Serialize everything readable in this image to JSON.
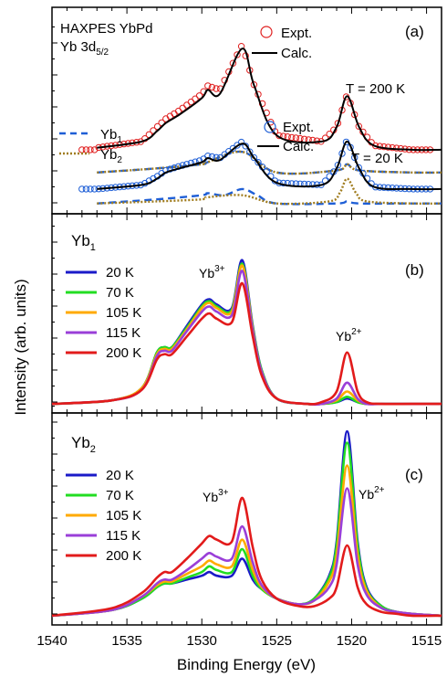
{
  "figure": {
    "ylabel": "Intensity (arb. units)",
    "xlabel": "Binding Energy (eV)",
    "xticks": [
      "1540",
      "1535",
      "1530",
      "1525",
      "1520",
      "1515"
    ]
  },
  "chart_data": [
    {
      "type": "line",
      "panel": "(a)",
      "title_lines": [
        "HAXPES YbPd",
        "Yb 3d",
        "5/2"
      ],
      "annotations": [
        "T = 200 K",
        "T = 20 K"
      ],
      "legend_top": [
        "Expt.",
        "Calc."
      ],
      "legend_bottom": [
        "Expt.",
        "Calc."
      ],
      "legend_components": [
        {
          "base": "Yb",
          "sub": "1"
        },
        {
          "base": "Yb",
          "sub": "2"
        }
      ],
      "xlim": [
        1540,
        1514
      ],
      "series": [
        {
          "name": "Expt. (200 K)",
          "style": "circles",
          "color": "#e02020",
          "x": [
            1537,
            1534,
            1533,
            1532.4,
            1531.5,
            1530,
            1529.6,
            1528.8,
            1527.3,
            1526.5,
            1525,
            1522,
            1521,
            1520.3,
            1519.5,
            1518.5,
            1516,
            1514
          ],
          "y": [
            0.32,
            0.35,
            0.42,
            0.46,
            0.5,
            0.58,
            0.62,
            0.6,
            0.82,
            0.62,
            0.38,
            0.35,
            0.42,
            0.58,
            0.42,
            0.33,
            0.31,
            0.31
          ]
        },
        {
          "name": "Calc. (200 K)",
          "style": "line",
          "color": "#000000",
          "x": [
            1537,
            1534,
            1533,
            1532.4,
            1531.5,
            1530,
            1529.6,
            1528.8,
            1527.3,
            1526.5,
            1525,
            1522,
            1521,
            1520.3,
            1519.5,
            1518.5,
            1516,
            1514
          ],
          "y": [
            0.32,
            0.35,
            0.4,
            0.44,
            0.48,
            0.56,
            0.6,
            0.58,
            0.8,
            0.62,
            0.38,
            0.35,
            0.42,
            0.57,
            0.42,
            0.33,
            0.31,
            0.31
          ]
        },
        {
          "name": "Yb1 (200 K)",
          "style": "dashed",
          "color": "#1f5fd6",
          "x": [
            1537,
            1533,
            1530,
            1529.6,
            1527.3,
            1525,
            1521,
            1520.3,
            1519.5,
            1516,
            1514
          ],
          "y": [
            0.2,
            0.22,
            0.24,
            0.25,
            0.3,
            0.2,
            0.21,
            0.24,
            0.21,
            0.2,
            0.2
          ]
        },
        {
          "name": "Yb2 (200 K)",
          "style": "dotted",
          "color": "#a07c1e",
          "x": [
            1537,
            1533,
            1530,
            1529.6,
            1527.3,
            1525,
            1521,
            1520.3,
            1519.5,
            1516,
            1514
          ],
          "y": [
            0.2,
            0.22,
            0.24,
            0.25,
            0.3,
            0.2,
            0.21,
            0.24,
            0.21,
            0.2,
            0.2
          ]
        },
        {
          "name": "Expt. (20 K)",
          "style": "circles",
          "color": "#1f5fd6",
          "x": [
            1537,
            1534,
            1533,
            1532.4,
            1531.5,
            1530,
            1529.6,
            1528.8,
            1527.3,
            1526.5,
            1525,
            1522,
            1521,
            1520.3,
            1519.5,
            1518.5,
            1516,
            1514
          ],
          "y": [
            0.12,
            0.14,
            0.18,
            0.21,
            0.23,
            0.26,
            0.28,
            0.27,
            0.35,
            0.27,
            0.15,
            0.14,
            0.22,
            0.36,
            0.22,
            0.13,
            0.12,
            0.12
          ]
        },
        {
          "name": "Calc. (20 K)",
          "style": "line",
          "color": "#000000",
          "x": [
            1537,
            1534,
            1533,
            1532.4,
            1531.5,
            1530,
            1529.6,
            1528.8,
            1527.3,
            1526.5,
            1525,
            1522,
            1521,
            1520.3,
            1519.5,
            1518.5,
            1516,
            1514
          ],
          "y": [
            0.12,
            0.14,
            0.17,
            0.2,
            0.22,
            0.25,
            0.27,
            0.26,
            0.34,
            0.27,
            0.15,
            0.14,
            0.22,
            0.35,
            0.22,
            0.13,
            0.12,
            0.12
          ]
        },
        {
          "name": "Yb1 (20 K)",
          "style": "dashed",
          "color": "#1f5fd6",
          "x": [
            1537,
            1533,
            1530,
            1529.6,
            1528.5,
            1527.3,
            1526.3,
            1525,
            1521,
            1520.3,
            1519.5,
            1516,
            1514
          ],
          "y": [
            0.05,
            0.07,
            0.09,
            0.1,
            0.09,
            0.12,
            0.09,
            0.05,
            0.05,
            0.06,
            0.05,
            0.05,
            0.05
          ]
        },
        {
          "name": "Yb2 (20 K)",
          "style": "dotted",
          "color": "#a07c1e",
          "x": [
            1537,
            1533,
            1530,
            1529.6,
            1527.3,
            1525,
            1521.5,
            1520.8,
            1520.3,
            1519.7,
            1519,
            1516,
            1514
          ],
          "y": [
            0.05,
            0.06,
            0.07,
            0.08,
            0.09,
            0.05,
            0.06,
            0.1,
            0.17,
            0.1,
            0.06,
            0.05,
            0.05
          ]
        }
      ]
    },
    {
      "type": "line",
      "panel": "(b)",
      "component": {
        "base": "Yb",
        "sub": "1"
      },
      "peak_labels": [
        {
          "base": "Yb",
          "sup": "3+"
        },
        {
          "base": "Yb",
          "sup": "2+"
        }
      ],
      "xlim": [
        1540,
        1514
      ],
      "ylim": [
        0,
        1
      ],
      "x": [
        1540,
        1536,
        1534,
        1533,
        1532.5,
        1532,
        1531,
        1530,
        1529.5,
        1529,
        1528,
        1527.3,
        1526.6,
        1526,
        1525,
        1523,
        1522,
        1521,
        1520.3,
        1519.6,
        1519,
        1518,
        1516,
        1514
      ],
      "series": [
        {
          "name": "20 K",
          "color": "#1a1ac8",
          "values": [
            0.01,
            0.03,
            0.1,
            0.3,
            0.33,
            0.33,
            0.45,
            0.57,
            0.6,
            0.57,
            0.55,
            0.82,
            0.45,
            0.2,
            0.04,
            0.01,
            0.01,
            0.02,
            0.04,
            0.02,
            0.01,
            0.01,
            0.01,
            0.01
          ]
        },
        {
          "name": "70 K",
          "color": "#22dd22",
          "values": [
            0.01,
            0.03,
            0.1,
            0.3,
            0.33,
            0.33,
            0.44,
            0.56,
            0.59,
            0.56,
            0.54,
            0.8,
            0.44,
            0.2,
            0.04,
            0.01,
            0.01,
            0.02,
            0.05,
            0.02,
            0.01,
            0.01,
            0.01,
            0.01
          ]
        },
        {
          "name": "105 K",
          "color": "#ffaa00",
          "values": [
            0.01,
            0.03,
            0.1,
            0.29,
            0.32,
            0.32,
            0.43,
            0.55,
            0.58,
            0.55,
            0.53,
            0.79,
            0.43,
            0.19,
            0.04,
            0.01,
            0.01,
            0.03,
            0.08,
            0.03,
            0.01,
            0.01,
            0.01,
            0.01
          ]
        },
        {
          "name": "115 K",
          "color": "#9a3fd8",
          "values": [
            0.01,
            0.03,
            0.09,
            0.28,
            0.31,
            0.31,
            0.42,
            0.53,
            0.56,
            0.53,
            0.51,
            0.76,
            0.42,
            0.19,
            0.04,
            0.01,
            0.01,
            0.04,
            0.13,
            0.04,
            0.01,
            0.01,
            0.01,
            0.01
          ]
        },
        {
          "name": "200 K",
          "color": "#e21b1b",
          "values": [
            0.01,
            0.03,
            0.09,
            0.26,
            0.29,
            0.29,
            0.39,
            0.49,
            0.52,
            0.49,
            0.47,
            0.69,
            0.39,
            0.17,
            0.04,
            0.01,
            0.02,
            0.08,
            0.3,
            0.08,
            0.02,
            0.01,
            0.01,
            0.01
          ]
        }
      ]
    },
    {
      "type": "line",
      "panel": "(c)",
      "component": {
        "base": "Yb",
        "sub": "2"
      },
      "peak_labels": [
        {
          "base": "Yb",
          "sup": "3+"
        },
        {
          "base": "Yb",
          "sup": "2+"
        }
      ],
      "xlim": [
        1540,
        1514
      ],
      "ylim": [
        0,
        1
      ],
      "x": [
        1540,
        1536,
        1534,
        1533,
        1532.5,
        1532,
        1531,
        1530,
        1529.5,
        1529,
        1528,
        1527.3,
        1526.6,
        1526,
        1525,
        1523.5,
        1522.5,
        1521.5,
        1521,
        1520.3,
        1519.6,
        1519,
        1518,
        1517,
        1516,
        1514
      ],
      "series": [
        {
          "name": "20 K",
          "color": "#1a1ac8",
          "values": [
            0.01,
            0.04,
            0.1,
            0.16,
            0.18,
            0.18,
            0.2,
            0.22,
            0.24,
            0.22,
            0.22,
            0.31,
            0.2,
            0.15,
            0.1,
            0.07,
            0.1,
            0.22,
            0.4,
            0.98,
            0.4,
            0.16,
            0.06,
            0.03,
            0.02,
            0.01
          ]
        },
        {
          "name": "70 K",
          "color": "#22dd22",
          "values": [
            0.01,
            0.04,
            0.1,
            0.16,
            0.18,
            0.18,
            0.21,
            0.24,
            0.27,
            0.25,
            0.24,
            0.36,
            0.22,
            0.15,
            0.1,
            0.07,
            0.1,
            0.21,
            0.38,
            0.92,
            0.38,
            0.15,
            0.06,
            0.03,
            0.02,
            0.01
          ]
        },
        {
          "name": "105 K",
          "color": "#ffaa00",
          "values": [
            0.01,
            0.04,
            0.11,
            0.17,
            0.19,
            0.19,
            0.23,
            0.27,
            0.3,
            0.28,
            0.27,
            0.41,
            0.25,
            0.16,
            0.1,
            0.07,
            0.09,
            0.19,
            0.33,
            0.8,
            0.33,
            0.14,
            0.05,
            0.03,
            0.02,
            0.01
          ]
        },
        {
          "name": "115 K",
          "color": "#9a3fd8",
          "values": [
            0.01,
            0.04,
            0.11,
            0.18,
            0.2,
            0.2,
            0.25,
            0.31,
            0.34,
            0.32,
            0.31,
            0.48,
            0.29,
            0.17,
            0.1,
            0.07,
            0.09,
            0.16,
            0.28,
            0.68,
            0.28,
            0.12,
            0.05,
            0.03,
            0.02,
            0.01
          ]
        },
        {
          "name": "200 K",
          "color": "#e21b1b",
          "values": [
            0.01,
            0.05,
            0.13,
            0.21,
            0.24,
            0.24,
            0.31,
            0.39,
            0.43,
            0.41,
            0.4,
            0.63,
            0.37,
            0.2,
            0.1,
            0.06,
            0.06,
            0.1,
            0.16,
            0.38,
            0.16,
            0.07,
            0.03,
            0.02,
            0.01,
            0.01
          ]
        }
      ]
    }
  ]
}
